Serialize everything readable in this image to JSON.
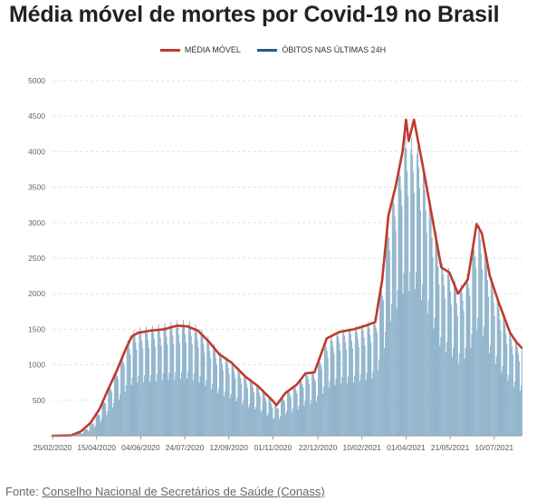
{
  "page_title": "Média móvel de mortes por Covid-19 no Brasil",
  "legend": [
    {
      "label": "MÉDIA MÓVEL",
      "color": "#c0392b"
    },
    {
      "label": "ÓBITOS NAS ÚLTIMAS 24H",
      "color": "#1f5d8c"
    }
  ],
  "source": {
    "prefix": "Fonte:",
    "link_text": "Conselho Nacional de Secretários de Saúde (Conass)"
  },
  "colors": {
    "line": "#c0392b",
    "bar": "#7fa9c4",
    "grid": "#e3e3e3",
    "axis": "#999999"
  },
  "chart_data": {
    "type": "bar",
    "title": "Média móvel de mortes por Covid-19 no Brasil",
    "xlabel": "",
    "ylabel": "",
    "ylim": [
      0,
      5000
    ],
    "yticks": [
      500,
      1000,
      1500,
      2000,
      2500,
      3000,
      3500,
      4000,
      4500,
      5000
    ],
    "xlim": [
      "2020-02-25",
      "2021-08-10"
    ],
    "xtick_labels": [
      "25/02/2020",
      "15/04/2020",
      "04/06/2020",
      "24/07/2020",
      "12/09/2020",
      "01/11/2020",
      "22/12/2020",
      "10/02/2021",
      "01/04/2021",
      "21/05/2021",
      "10/07/2021"
    ],
    "grid": true,
    "legend_position": "top-center",
    "series": [
      {
        "name": "MÉDIA MÓVEL",
        "type": "line",
        "points": [
          [
            "2020-02-25",
            0
          ],
          [
            "2020-03-17",
            5
          ],
          [
            "2020-03-28",
            60
          ],
          [
            "2020-04-08",
            180
          ],
          [
            "2020-04-18",
            370
          ],
          [
            "2020-04-28",
            650
          ],
          [
            "2020-05-08",
            920
          ],
          [
            "2020-05-18",
            1220
          ],
          [
            "2020-05-25",
            1400
          ],
          [
            "2020-06-01",
            1450
          ],
          [
            "2020-06-15",
            1480
          ],
          [
            "2020-07-01",
            1500
          ],
          [
            "2020-07-15",
            1550
          ],
          [
            "2020-07-27",
            1540
          ],
          [
            "2020-08-08",
            1480
          ],
          [
            "2020-08-20",
            1330
          ],
          [
            "2020-09-01",
            1150
          ],
          [
            "2020-09-15",
            1030
          ],
          [
            "2020-10-01",
            830
          ],
          [
            "2020-10-15",
            700
          ],
          [
            "2020-11-01",
            490
          ],
          [
            "2020-11-05",
            430
          ],
          [
            "2020-11-15",
            600
          ],
          [
            "2020-11-28",
            720
          ],
          [
            "2020-12-08",
            880
          ],
          [
            "2020-12-18",
            890
          ],
          [
            "2021-01-01",
            1370
          ],
          [
            "2021-01-15",
            1460
          ],
          [
            "2021-02-01",
            1500
          ],
          [
            "2021-02-14",
            1550
          ],
          [
            "2021-02-25",
            1600
          ],
          [
            "2021-03-05",
            2200
          ],
          [
            "2021-03-12",
            3100
          ],
          [
            "2021-03-20",
            3500
          ],
          [
            "2021-03-28",
            4000
          ],
          [
            "2021-04-01",
            4450
          ],
          [
            "2021-04-04",
            4150
          ],
          [
            "2021-04-10",
            4450
          ],
          [
            "2021-04-20",
            3800
          ],
          [
            "2021-05-01",
            3050
          ],
          [
            "2021-05-11",
            2370
          ],
          [
            "2021-05-20",
            2300
          ],
          [
            "2021-05-30",
            2000
          ],
          [
            "2021-06-10",
            2200
          ],
          [
            "2021-06-20",
            2980
          ],
          [
            "2021-06-26",
            2850
          ],
          [
            "2021-07-05",
            2250
          ],
          [
            "2021-07-15",
            1880
          ],
          [
            "2021-07-28",
            1450
          ],
          [
            "2021-08-04",
            1320
          ],
          [
            "2021-08-10",
            1240
          ]
        ]
      },
      {
        "name": "ÓBITOS NAS ÚLTIMAS 24H",
        "type": "bar",
        "points": [
          [
            "2020-02-25",
            0
          ],
          [
            "2020-03-17",
            3
          ],
          [
            "2020-03-28",
            40
          ],
          [
            "2020-04-08",
            140
          ],
          [
            "2020-04-18",
            320
          ],
          [
            "2020-04-28",
            580
          ],
          [
            "2020-05-08",
            860
          ],
          [
            "2020-05-18",
            1150
          ],
          [
            "2020-05-25",
            1320
          ],
          [
            "2020-06-01",
            1360
          ],
          [
            "2020-06-15",
            1380
          ],
          [
            "2020-07-01",
            1420
          ],
          [
            "2020-07-15",
            1450
          ],
          [
            "2020-07-27",
            1460
          ],
          [
            "2020-08-08",
            1380
          ],
          [
            "2020-08-20",
            1240
          ],
          [
            "2020-09-01",
            1060
          ],
          [
            "2020-09-15",
            940
          ],
          [
            "2020-10-01",
            760
          ],
          [
            "2020-10-15",
            640
          ],
          [
            "2020-11-01",
            430
          ],
          [
            "2020-11-05",
            380
          ],
          [
            "2020-11-15",
            550
          ],
          [
            "2020-11-28",
            660
          ],
          [
            "2020-12-08",
            800
          ],
          [
            "2020-12-18",
            820
          ],
          [
            "2021-01-01",
            1220
          ],
          [
            "2021-01-15",
            1330
          ],
          [
            "2021-02-01",
            1370
          ],
          [
            "2021-02-14",
            1420
          ],
          [
            "2021-02-25",
            1480
          ],
          [
            "2021-03-05",
            2000
          ],
          [
            "2021-03-12",
            2850
          ],
          [
            "2021-03-20",
            3200
          ],
          [
            "2021-03-28",
            3650
          ],
          [
            "2021-04-01",
            3850
          ],
          [
            "2021-04-04",
            3700
          ],
          [
            "2021-04-10",
            3800
          ],
          [
            "2021-04-20",
            3400
          ],
          [
            "2021-05-01",
            2800
          ],
          [
            "2021-05-11",
            2180
          ],
          [
            "2021-05-20",
            2100
          ],
          [
            "2021-05-30",
            1850
          ],
          [
            "2021-06-10",
            2050
          ],
          [
            "2021-06-20",
            2700
          ],
          [
            "2021-06-26",
            2600
          ],
          [
            "2021-07-05",
            2050
          ],
          [
            "2021-07-15",
            1700
          ],
          [
            "2021-07-28",
            1320
          ],
          [
            "2021-08-04",
            1200
          ],
          [
            "2021-08-10",
            1130
          ]
        ]
      }
    ]
  }
}
